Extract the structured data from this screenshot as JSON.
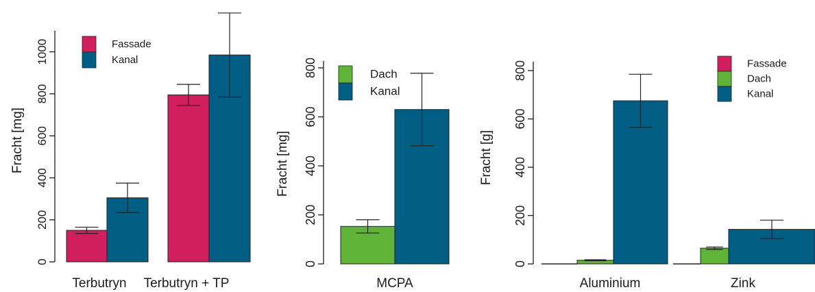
{
  "colors": {
    "fassade": "#d01f5c",
    "dach": "#5fb336",
    "kanal": "#005e85",
    "axis": "#1a1a1a"
  },
  "chart_data": [
    {
      "type": "bar",
      "ylabel": "Fracht [mg]",
      "ylim": [
        0,
        1100
      ],
      "yticks": [
        0,
        200,
        400,
        600,
        800,
        1000
      ],
      "categories": [
        "Terbutryn",
        "Terbutryn + TP"
      ],
      "legend": "top-left",
      "series": [
        {
          "name": "Fassade",
          "color": "fassade",
          "values": [
            150,
            795
          ],
          "errors": [
            15,
            50
          ]
        },
        {
          "name": "Kanal",
          "color": "kanal",
          "values": [
            305,
            985
          ],
          "errors": [
            70,
            200
          ]
        }
      ]
    },
    {
      "type": "bar",
      "ylabel": "Fracht [mg]",
      "ylim": [
        0,
        850
      ],
      "yticks": [
        0,
        200,
        400,
        600,
        800
      ],
      "categories": [
        "MCPA"
      ],
      "legend": "top-left",
      "series": [
        {
          "name": "Dach",
          "color": "dach",
          "values": [
            153
          ],
          "errors": [
            27
          ]
        },
        {
          "name": "Kanal",
          "color": "kanal",
          "values": [
            630
          ],
          "errors": [
            148
          ]
        }
      ]
    },
    {
      "type": "bar",
      "ylabel": "Fracht [g]",
      "ylim": [
        0,
        850
      ],
      "yticks": [
        0,
        200,
        400,
        600,
        800
      ],
      "categories": [
        "Aluminium",
        "Zink"
      ],
      "legend": "top-right",
      "series": [
        {
          "name": "Fassade",
          "color": "fassade",
          "values": [
            0,
            0
          ],
          "errors": [
            0,
            0
          ]
        },
        {
          "name": "Dach",
          "color": "dach",
          "values": [
            15,
            65
          ],
          "errors": [
            2,
            5
          ]
        },
        {
          "name": "Kanal",
          "color": "kanal",
          "values": [
            675,
            143
          ],
          "errors": [
            110,
            38
          ]
        }
      ]
    }
  ]
}
